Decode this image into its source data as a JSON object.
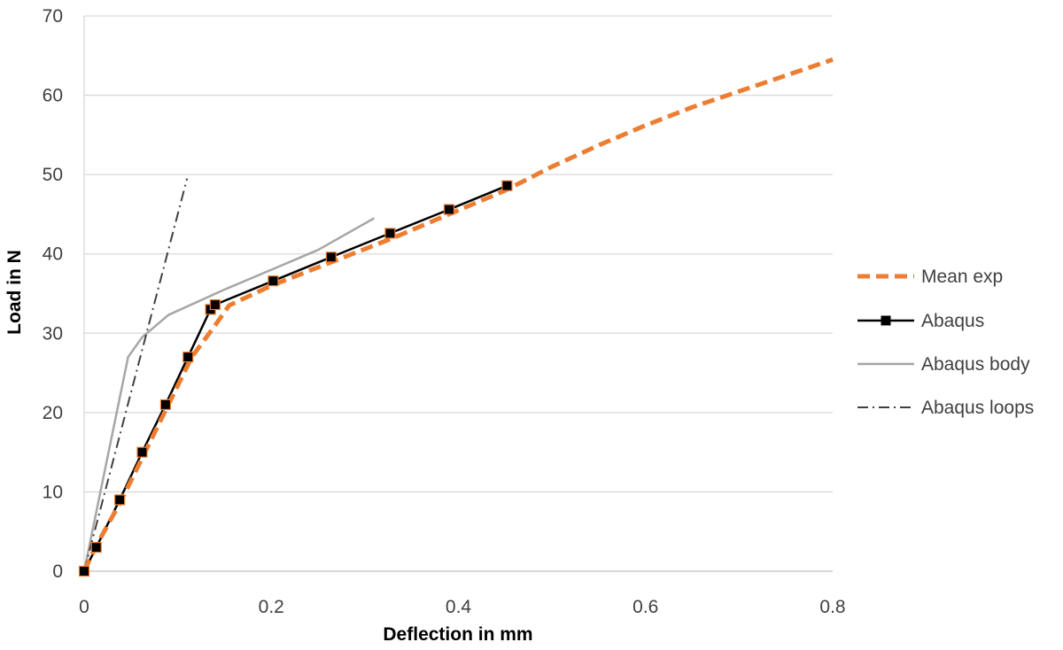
{
  "chart_data": {
    "type": "line",
    "title": "",
    "xlabel": "Deflection in mm",
    "ylabel": "Load in N",
    "xlim": [
      0,
      0.8
    ],
    "ylim": [
      0,
      70
    ],
    "xticks": [
      {
        "value": 0,
        "label": "0"
      },
      {
        "value": 0.2,
        "label": "0.2"
      },
      {
        "value": 0.4,
        "label": "0.4"
      },
      {
        "value": 0.6,
        "label": "0.6"
      },
      {
        "value": 0.8,
        "label": "0.8"
      }
    ],
    "yticks": [
      {
        "value": 0,
        "label": "0"
      },
      {
        "value": 10,
        "label": "10"
      },
      {
        "value": 20,
        "label": "20"
      },
      {
        "value": 30,
        "label": "30"
      },
      {
        "value": 40,
        "label": "40"
      },
      {
        "value": 50,
        "label": "50"
      },
      {
        "value": 60,
        "label": "60"
      },
      {
        "value": 70,
        "label": "70"
      }
    ],
    "grid": {
      "horizontal": true,
      "vertical": false,
      "color": "#d9d9d9"
    },
    "legend": {
      "position": "right"
    },
    "series": [
      {
        "name": "Mean exp",
        "color": "#ed7d31",
        "style": "dashed",
        "markers": false,
        "points": [
          [
            0,
            0
          ],
          [
            0.012,
            3
          ],
          [
            0.04,
            9
          ],
          [
            0.065,
            15
          ],
          [
            0.09,
            21
          ],
          [
            0.115,
            27
          ],
          [
            0.14,
            31
          ],
          [
            0.155,
            33.5
          ],
          [
            0.2,
            36
          ],
          [
            0.265,
            39
          ],
          [
            0.33,
            42
          ],
          [
            0.39,
            45
          ],
          [
            0.45,
            48
          ],
          [
            0.5,
            51
          ],
          [
            0.55,
            53.7
          ],
          [
            0.6,
            56.2
          ],
          [
            0.65,
            58.5
          ],
          [
            0.7,
            60.5
          ],
          [
            0.75,
            62.5
          ],
          [
            0.8,
            64.5
          ]
        ]
      },
      {
        "name": "Abaqus",
        "color": "#000000",
        "style": "solid",
        "markers": true,
        "points": [
          [
            0,
            0
          ],
          [
            0.013,
            3
          ],
          [
            0.038,
            9
          ],
          [
            0.062,
            15
          ],
          [
            0.087,
            21
          ],
          [
            0.111,
            27
          ],
          [
            0.135,
            33
          ],
          [
            0.14,
            33.6
          ],
          [
            0.202,
            36.6
          ],
          [
            0.264,
            39.6
          ],
          [
            0.327,
            42.6
          ],
          [
            0.39,
            45.6
          ],
          [
            0.452,
            48.6
          ]
        ]
      },
      {
        "name": "Abaqus body",
        "color": "#a6a6a6",
        "style": "solid",
        "markers": false,
        "points": [
          [
            0,
            0
          ],
          [
            0.047,
            27
          ],
          [
            0.062,
            29.5
          ],
          [
            0.09,
            32.3
          ],
          [
            0.15,
            35.5
          ],
          [
            0.2,
            38
          ],
          [
            0.25,
            40.5
          ],
          [
            0.31,
            44.5
          ]
        ]
      },
      {
        "name": "Abaqus loops",
        "color": "#404040",
        "style": "dashdot",
        "markers": false,
        "points": [
          [
            0,
            0
          ],
          [
            0.11,
            49.5
          ]
        ]
      }
    ]
  }
}
